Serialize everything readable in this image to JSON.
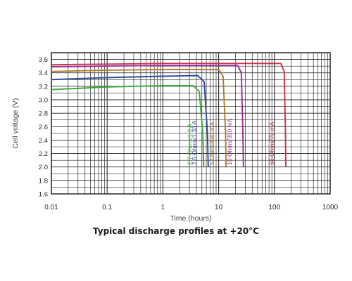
{
  "chart_data": {
    "type": "line",
    "title": "Typical discharge profiles at +20°C",
    "xlabel": "Time (hours)",
    "ylabel": "Cell voltage (V)",
    "xscale": "log",
    "xlim": [
      0.01,
      1000
    ],
    "ylim": [
      1.6,
      3.7
    ],
    "x_ticks": [
      "0.01",
      "0.1",
      "1",
      "10",
      "100",
      "1000"
    ],
    "y_ticks": [
      "1.6",
      "1.8",
      "2.0",
      "2.2",
      "2.4",
      "2.6",
      "2.8",
      "3.0",
      "3.2",
      "3.4",
      "3.6"
    ],
    "grid": true,
    "series": [
      {
        "name": "2.7 Ohms/1.6 A",
        "color": "#3aa83a",
        "x": [
          0.01,
          0.1,
          1,
          3.5,
          4.5,
          5.2,
          5.4
        ],
        "y": [
          3.15,
          3.19,
          3.21,
          3.21,
          3.12,
          2.5,
          2.0
        ]
      },
      {
        "name": "2.5 Ohms/1.33 A",
        "color": "#2b4a9a",
        "x": [
          0.01,
          0.1,
          1,
          4.2,
          5.5,
          6.3,
          6.5
        ],
        "y": [
          3.3,
          3.33,
          3.35,
          3.36,
          3.27,
          2.5,
          2.0
        ]
      },
      {
        "name": "5 Ohms/680 mA",
        "color": "#b07a2e",
        "x": [
          0.01,
          0.1,
          1,
          10,
          12,
          13.3,
          13.6
        ],
        "y": [
          3.42,
          3.44,
          3.45,
          3.45,
          3.35,
          2.5,
          2.0
        ]
      },
      {
        "name": "10 Ohms/350 mA",
        "color": "#9b2d9b",
        "x": [
          0.01,
          0.1,
          1,
          22,
          25.5,
          27.2,
          27.8
        ],
        "y": [
          3.49,
          3.5,
          3.51,
          3.51,
          3.4,
          2.5,
          2.0
        ]
      },
      {
        "name": "50 Ohms/70 mA",
        "color": "#c8334a",
        "x": [
          0.01,
          0.1,
          1,
          10,
          130,
          150,
          158,
          160
        ],
        "y": [
          3.52,
          3.53,
          3.54,
          3.54,
          3.54,
          3.42,
          2.5,
          2.0
        ]
      }
    ]
  }
}
